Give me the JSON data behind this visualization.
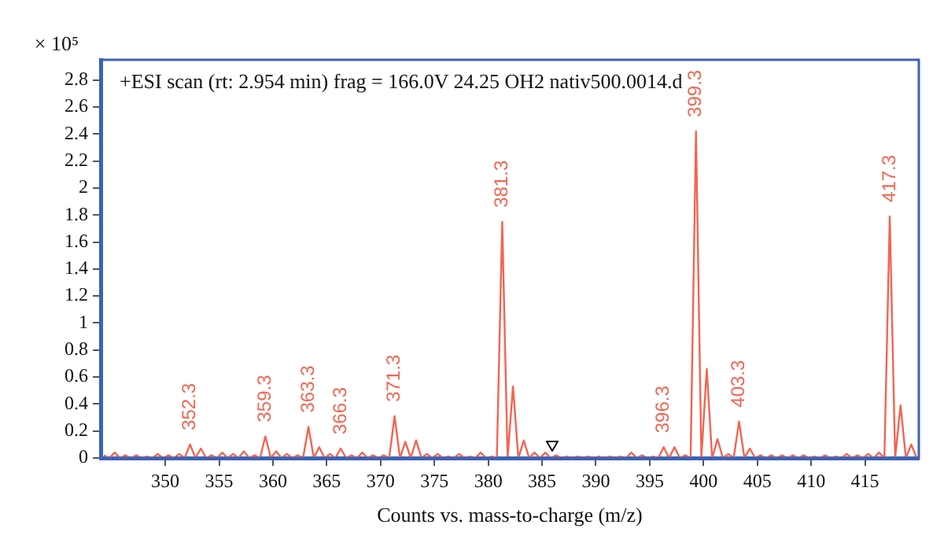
{
  "chart_data": {
    "type": "line",
    "title": "+ESI scan (rt: 2.954 min) frag = 166.0V 24.25 OH2 nativ500.0014.d",
    "xlabel": "Counts vs. mass-to-charge (m/z)",
    "ylabel": "× 10⁵",
    "x": [
      344.3,
      344.8,
      345.3,
      345.8,
      346.3,
      346.8,
      347.3,
      347.8,
      348.3,
      348.8,
      349.3,
      349.8,
      350.3,
      350.8,
      351.3,
      351.8,
      352.3,
      352.8,
      353.3,
      353.8,
      354.3,
      354.8,
      355.3,
      355.8,
      356.3,
      356.8,
      357.3,
      357.8,
      358.3,
      358.8,
      359.3,
      359.8,
      360.3,
      360.8,
      361.3,
      361.8,
      362.3,
      362.8,
      363.3,
      363.8,
      364.3,
      364.8,
      365.3,
      365.8,
      366.3,
      366.8,
      367.3,
      367.8,
      368.3,
      368.8,
      369.3,
      369.8,
      370.3,
      370.8,
      371.3,
      371.8,
      372.3,
      372.8,
      373.3,
      373.8,
      374.3,
      374.8,
      375.3,
      375.8,
      376.3,
      376.8,
      377.3,
      377.8,
      378.3,
      378.8,
      379.3,
      379.8,
      380.3,
      380.8,
      381.3,
      381.8,
      382.3,
      382.8,
      383.3,
      383.8,
      384.3,
      384.8,
      385.3,
      385.8,
      386.3,
      386.8,
      387.3,
      387.8,
      388.3,
      388.8,
      389.3,
      389.8,
      390.3,
      390.8,
      391.3,
      391.8,
      392.3,
      392.8,
      393.3,
      393.8,
      394.3,
      394.8,
      395.3,
      395.8,
      396.3,
      396.8,
      397.3,
      397.8,
      398.3,
      398.8,
      399.3,
      399.8,
      400.3,
      400.8,
      401.3,
      401.8,
      402.3,
      402.8,
      403.3,
      403.8,
      404.3,
      404.8,
      405.3,
      405.8,
      406.3,
      406.8,
      407.3,
      407.8,
      408.3,
      408.8,
      409.3,
      409.8,
      410.3,
      410.8,
      411.3,
      411.8,
      412.3,
      412.8,
      413.3,
      413.8,
      414.3,
      414.8,
      415.3,
      415.8,
      416.3,
      416.8,
      417.3,
      417.8,
      418.3,
      418.8,
      419.3,
      419.8
    ],
    "series": [
      {
        "color": "#f26552",
        "values": [
          0.02,
          0,
          0.04,
          0,
          0.02,
          0,
          0.02,
          0,
          0.01,
          0,
          0.03,
          0,
          0.02,
          0,
          0.03,
          0,
          0.1,
          0,
          0.07,
          0,
          0.02,
          0,
          0.04,
          0,
          0.03,
          0,
          0.05,
          0,
          0.02,
          0,
          0.16,
          0,
          0.05,
          0,
          0.03,
          0,
          0.02,
          0,
          0.23,
          0,
          0.08,
          0,
          0.03,
          0,
          0.07,
          0,
          0.02,
          0,
          0.04,
          0,
          0.02,
          0,
          0.02,
          0,
          0.31,
          0,
          0.12,
          0,
          0.13,
          0,
          0.03,
          0,
          0.03,
          0,
          0.01,
          0,
          0.03,
          0,
          0.01,
          0,
          0.04,
          0,
          0.01,
          0,
          1.75,
          0,
          0.53,
          0,
          0.13,
          0,
          0.04,
          0,
          0.04,
          0,
          0.02,
          0,
          0.01,
          0,
          0.01,
          0,
          0.01,
          0,
          0.01,
          0,
          0.01,
          0,
          0.01,
          0,
          0.04,
          0,
          0.02,
          0,
          0.01,
          0,
          0.08,
          0,
          0.08,
          0,
          0.02,
          0,
          2.42,
          0,
          0.66,
          0,
          0.14,
          0,
          0.03,
          0,
          0.27,
          0,
          0.07,
          0,
          0.02,
          0,
          0.02,
          0,
          0.02,
          0,
          0.02,
          0,
          0.02,
          0,
          0.01,
          0,
          0.02,
          0,
          0.01,
          0,
          0.03,
          0,
          0.02,
          0,
          0.03,
          0,
          0.04,
          0,
          1.79,
          0,
          0.39,
          0,
          0.1,
          0
        ]
      }
    ],
    "xlim": [
      344,
      420
    ],
    "xticks": [
      350,
      355,
      360,
      365,
      370,
      375,
      380,
      385,
      390,
      395,
      400,
      405,
      410,
      415
    ],
    "ylim": [
      0,
      2.95
    ],
    "yticks": [
      0,
      0.2,
      0.4,
      0.6,
      0.8,
      1,
      1.2,
      1.4,
      1.6,
      1.8,
      2,
      2.2,
      2.4,
      2.6,
      2.8
    ],
    "grid": false,
    "legend": false,
    "marker": "none",
    "line_style": "solid",
    "annotations": [
      {
        "text": "352.3",
        "x": 352.3,
        "y": 0.1
      },
      {
        "text": "359.3",
        "x": 359.3,
        "y": 0.16
      },
      {
        "text": "363.3",
        "x": 363.3,
        "y": 0.23
      },
      {
        "text": "366.3",
        "x": 366.3,
        "y": 0.07
      },
      {
        "text": "371.3",
        "x": 371.3,
        "y": 0.31
      },
      {
        "text": "381.3",
        "x": 381.3,
        "y": 1.75
      },
      {
        "text": "396.3",
        "x": 396.3,
        "y": 0.08
      },
      {
        "text": "399.3",
        "x": 399.3,
        "y": 2.42
      },
      {
        "text": "403.3",
        "x": 403.3,
        "y": 0.27
      },
      {
        "text": "417.3",
        "x": 417.3,
        "y": 1.79
      }
    ]
  }
}
